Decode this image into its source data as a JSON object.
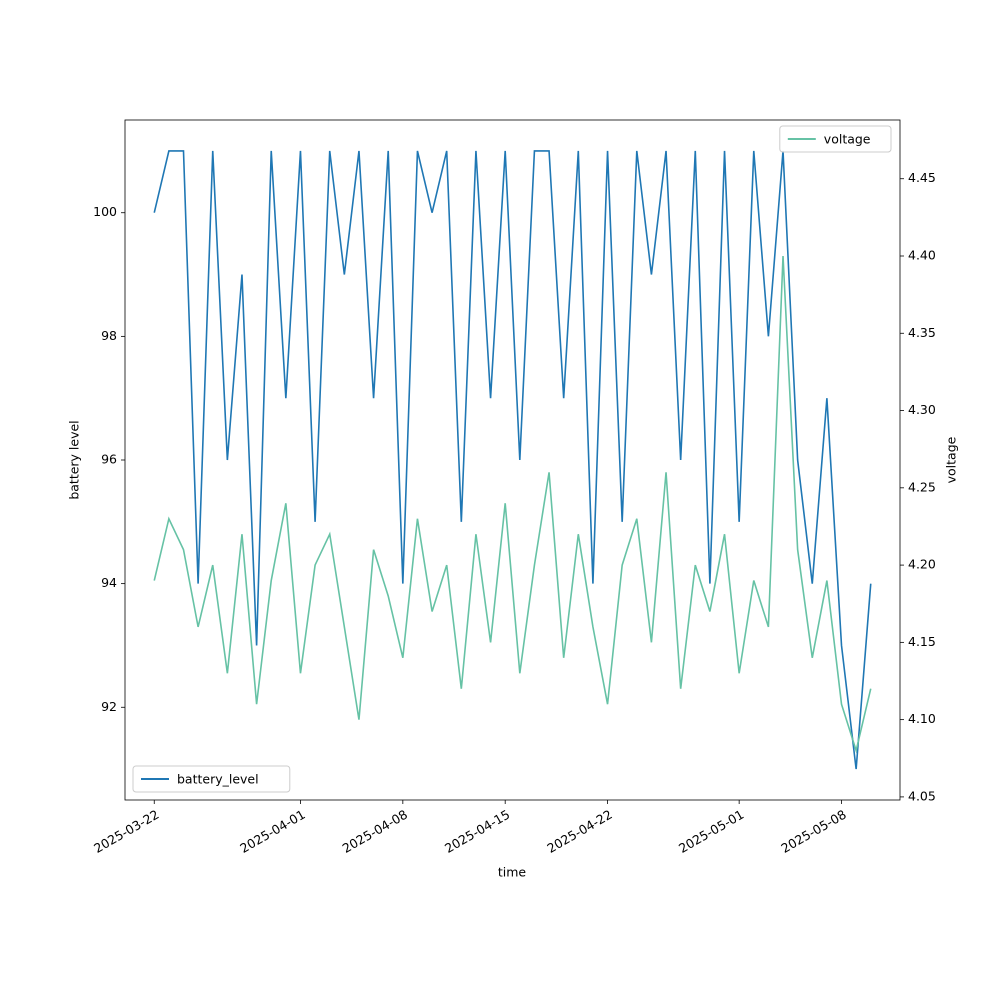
{
  "chart_data": {
    "type": "line",
    "xlabel": "time",
    "ylabel": "battery level",
    "y2label": "voltage",
    "x": [
      "2025-03-22",
      "2025-03-23",
      "2025-03-24",
      "2025-03-25",
      "2025-03-26",
      "2025-03-27",
      "2025-03-28",
      "2025-03-29",
      "2025-03-30",
      "2025-03-31",
      "2025-04-01",
      "2025-04-02",
      "2025-04-03",
      "2025-04-04",
      "2025-04-05",
      "2025-04-06",
      "2025-04-07",
      "2025-04-08",
      "2025-04-09",
      "2025-04-10",
      "2025-04-11",
      "2025-04-12",
      "2025-04-13",
      "2025-04-14",
      "2025-04-15",
      "2025-04-16",
      "2025-04-17",
      "2025-04-18",
      "2025-04-19",
      "2025-04-20",
      "2025-04-21",
      "2025-04-22",
      "2025-04-23",
      "2025-04-24",
      "2025-04-25",
      "2025-04-26",
      "2025-04-27",
      "2025-04-28",
      "2025-04-29",
      "2025-04-30",
      "2025-05-01",
      "2025-05-02",
      "2025-05-03",
      "2025-05-04",
      "2025-05-05",
      "2025-05-06",
      "2025-05-07",
      "2025-05-08",
      "2025-05-09",
      "2025-05-10"
    ],
    "series": [
      {
        "name": "battery_level",
        "color": "#1f77b4",
        "axis": "y",
        "legend": "lower left",
        "values": [
          100,
          101,
          101,
          94,
          101,
          96,
          99,
          93,
          101,
          97,
          101,
          95,
          101,
          99,
          101,
          97,
          101,
          94,
          101,
          100,
          101,
          95,
          101,
          97,
          101,
          96,
          101,
          101,
          97,
          101,
          94,
          101,
          95,
          101,
          99,
          101,
          96,
          101,
          94,
          101,
          95,
          101,
          98,
          101,
          96,
          94,
          97,
          93,
          91,
          94
        ]
      },
      {
        "name": "voltage",
        "color": "#66c2a5",
        "axis": "y2",
        "legend": "upper right",
        "values": [
          4.19,
          4.23,
          4.21,
          4.16,
          4.2,
          4.13,
          4.22,
          4.11,
          4.19,
          4.24,
          4.13,
          4.2,
          4.22,
          4.16,
          4.1,
          4.21,
          4.18,
          4.14,
          4.23,
          4.17,
          4.2,
          4.12,
          4.22,
          4.15,
          4.24,
          4.13,
          4.2,
          4.26,
          4.14,
          4.22,
          4.16,
          4.11,
          4.2,
          4.23,
          4.15,
          4.26,
          4.12,
          4.2,
          4.17,
          4.22,
          4.13,
          4.19,
          4.16,
          4.4,
          4.21,
          4.14,
          4.19,
          4.11,
          4.08,
          4.12
        ]
      }
    ],
    "xlim": [
      "2025-03-20",
      "2025-05-12"
    ],
    "xticks": [
      "2025-03-22",
      "2025-04-01",
      "2025-04-08",
      "2025-04-15",
      "2025-04-22",
      "2025-05-01",
      "2025-05-08"
    ],
    "ylim": [
      90.5,
      101.5
    ],
    "yticks": [
      92,
      94,
      96,
      98,
      100
    ],
    "y2lim": [
      4.048,
      4.488
    ],
    "y2ticks": [
      4.05,
      {
        "value": 4.1,
        "label": "4.10"
      },
      4.15,
      {
        "value": 4.2,
        "label": "4.20"
      },
      4.25,
      {
        "value": 4.3,
        "label": "4.30"
      },
      4.35,
      {
        "value": 4.4,
        "label": "4.40"
      },
      4.45
    ],
    "grid": false
  }
}
